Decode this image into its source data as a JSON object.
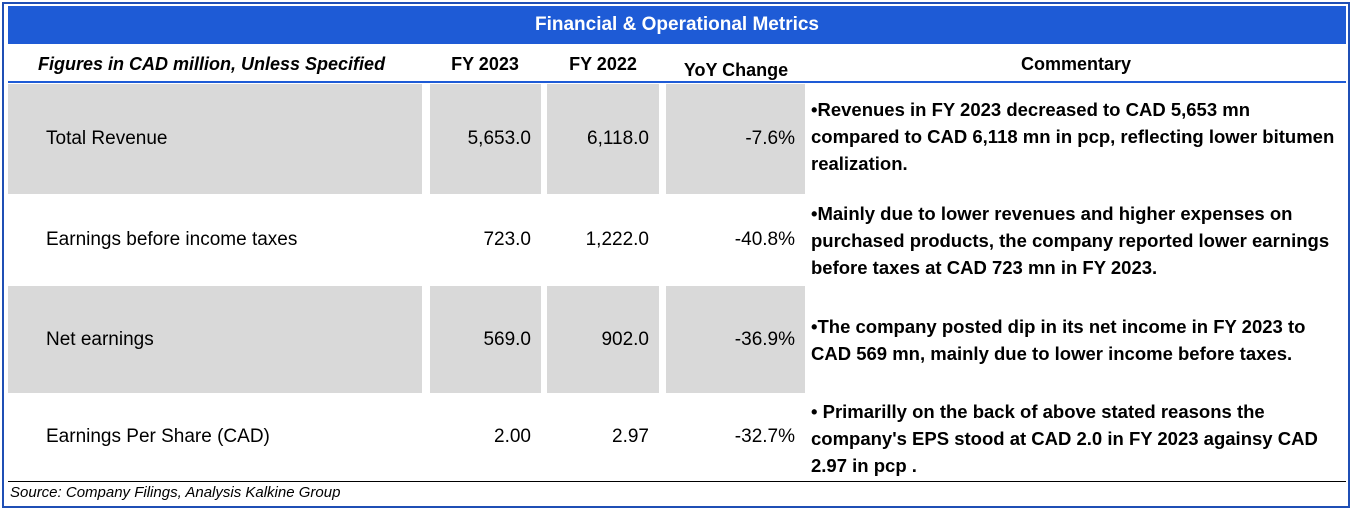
{
  "title": "Financial & Operational Metrics",
  "headers": {
    "figures": "Figures in CAD million, Unless Specified",
    "fy2023": "FY 2023",
    "fy2022": "FY 2022",
    "yoy": "YoY Change",
    "commentary": "Commentary"
  },
  "rows": [
    {
      "label": "Total Revenue",
      "fy2023": "5,653.0",
      "fy2022": "6,118.0",
      "yoy": "-7.6%",
      "commentary": "•Revenues in FY 2023 decreased to CAD 5,653 mn compared to CAD 6,118 mn in pcp, reflecting lower bitumen realization."
    },
    {
      "label": "Earnings before income taxes",
      "fy2023": "723.0",
      "fy2022": "1,222.0",
      "yoy": "-40.8%",
      "commentary": "•Mainly due to lower revenues and higher expenses on purchased products, the company reported lower earnings before taxes at CAD 723 mn in FY 2023."
    },
    {
      "label": "Net earnings",
      "fy2023": "569.0",
      "fy2022": "902.0",
      "yoy": "-36.9%",
      "commentary": "•The company posted dip in its net income in FY 2023 to CAD 569 mn, mainly due to lower income before taxes."
    },
    {
      "label": "Earnings Per Share (CAD)",
      "fy2023": "2.00",
      "fy2022": "2.97",
      "yoy": "-32.7%",
      "commentary": "• Primarilly on the back of above stated reasons the company's EPS stood at CAD 2.0 in FY 2023 againsy CAD 2.97 in pcp ."
    }
  ],
  "source": "Source: Company Filings, Analysis Kalkine Group",
  "colors": {
    "accent": "#1e5bd6",
    "shade": "#d9d9d9"
  }
}
